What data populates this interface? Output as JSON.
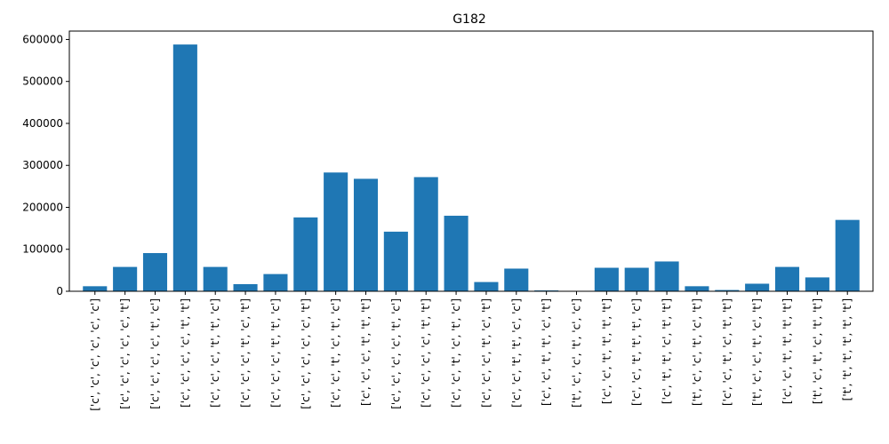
{
  "chart_data": {
    "type": "bar",
    "title": "G182",
    "xlabel": "",
    "ylabel": "",
    "ylim": [
      0,
      620000
    ],
    "yticks": [
      0,
      100000,
      200000,
      300000,
      400000,
      500000,
      600000
    ],
    "ytick_labels": [
      "0",
      "100000",
      "200000",
      "300000",
      "400000",
      "500000",
      "600000"
    ],
    "grid": false,
    "legend": "none",
    "bar_color": "#1f77b4",
    "categories": [
      "['c', 'c', 'c', 'c', 'c', 'c']",
      "['c', 'c', 'c', 'c', 'c', 't']",
      "['c', 'c', 'c', 'c', 't', 'c']",
      "['c', 'c', 'c', 'c', 't', 't']",
      "['c', 'c', 'c', 't', 't', 'c']",
      "['c', 'c', 'c', 't', 'c', 't']",
      "['c', 'c', 'c', 't', 't', 'c']",
      "['c', 'c', 'c', 'c', 'c', 't']",
      "['c', 'c', 't', 'c', 't', 'c']",
      "['c', 'c', 'c', 't', 't', 't']",
      "['c', 'c', 'c', 'c', 't', 'c']",
      "['c', 'c', 'c', 'c', 't', 't']",
      "['c', 'c', 't', 'c', 't', 'c']",
      "['c', 'c', 'c', 't', 'c', 't']",
      "['c', 'c', 't', 't', 'c', 'c']",
      "['c', 'c', 't', 't', 'c', 't']",
      "['t', 'c', 'c', 't', 'c', 'c']",
      "['c', 'c', 't', 't', 't', 't']",
      "['c', 'c', 't', 't', 't', 'c']",
      "['c', 't', 't', 'c', 't', 't']",
      "['t', 'c', 'c', 't', 'c', 't']",
      "['c', 'c', 't', 'c', 't', 't']",
      "['t', 'c', 'c', 't', 'c', 't']",
      "['c', 'c', 't', 't', 't', 't']",
      "['t', 'c', 't', 'c', 't', 't']",
      "['t', 't', 't', 't', 't', 't']"
    ],
    "values": [
      12000,
      58000,
      91000,
      588000,
      58000,
      17000,
      41000,
      176000,
      283000,
      268000,
      142000,
      272000,
      180000,
      22000,
      54000,
      2000,
      0,
      56000,
      56000,
      71000,
      12000,
      3000,
      18000,
      58000,
      33000,
      170000
    ]
  }
}
